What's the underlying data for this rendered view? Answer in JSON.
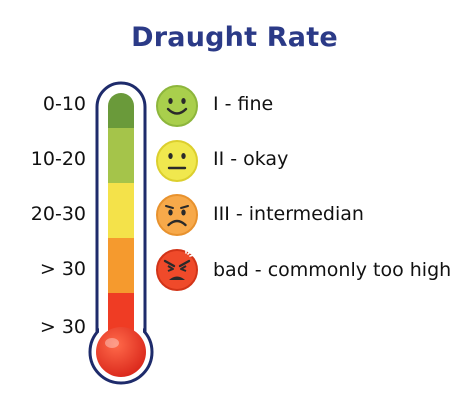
{
  "title": "Draught Rate",
  "scale_labels": [
    "0-10",
    "10-20",
    "20-30",
    "> 30",
    "> 30"
  ],
  "levels": [
    {
      "label": "I - fine",
      "face": "happy-face-icon",
      "color": "#a9cf4c"
    },
    {
      "label": "II - okay",
      "face": "neutral-face-icon",
      "color": "#f0e84e"
    },
    {
      "label": "III - intermedian",
      "face": "sad-face-icon",
      "color": "#f7a94a"
    },
    {
      "label": "bad - commonly too high",
      "face": "angry-face-icon",
      "color": "#ef4a2a"
    }
  ],
  "colors": {
    "title": "#2b3a87",
    "outline": "#1e2b6b",
    "band_1": "#6a9a3a",
    "band_2": "#a5c44a",
    "band_3": "#f4e24a",
    "band_4": "#f59a2e",
    "band_5": "#ef3c24"
  }
}
